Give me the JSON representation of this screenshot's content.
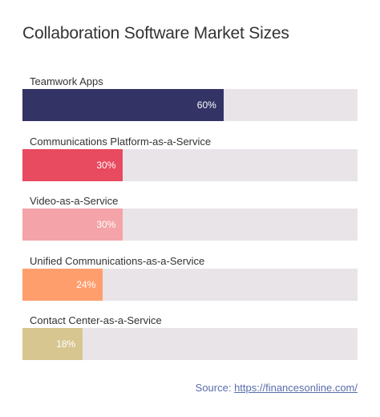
{
  "chart_data": {
    "type": "bar",
    "orientation": "horizontal",
    "title": "Collaboration Software Market Sizes",
    "categories": [
      "Teamwork Apps",
      "Communications Platform-as-a-Service",
      "Video-as-a-Service",
      "Unified Communications-as-a-Service",
      "Contact Center-as-a-Service"
    ],
    "values": [
      60,
      30,
      30,
      24,
      18
    ],
    "value_labels": [
      "60%",
      "30%",
      "30%",
      "24%",
      "18%"
    ],
    "colors": [
      "#333366",
      "#e84a5f",
      "#f4a3a8",
      "#ff9e6d",
      "#d8c690"
    ],
    "track_color": "#e8e4e8",
    "xlim": [
      0,
      100
    ],
    "grid": false,
    "legend": "none"
  },
  "source": {
    "prefix": "Source: ",
    "link_text": "https://financesonline.com/"
  }
}
